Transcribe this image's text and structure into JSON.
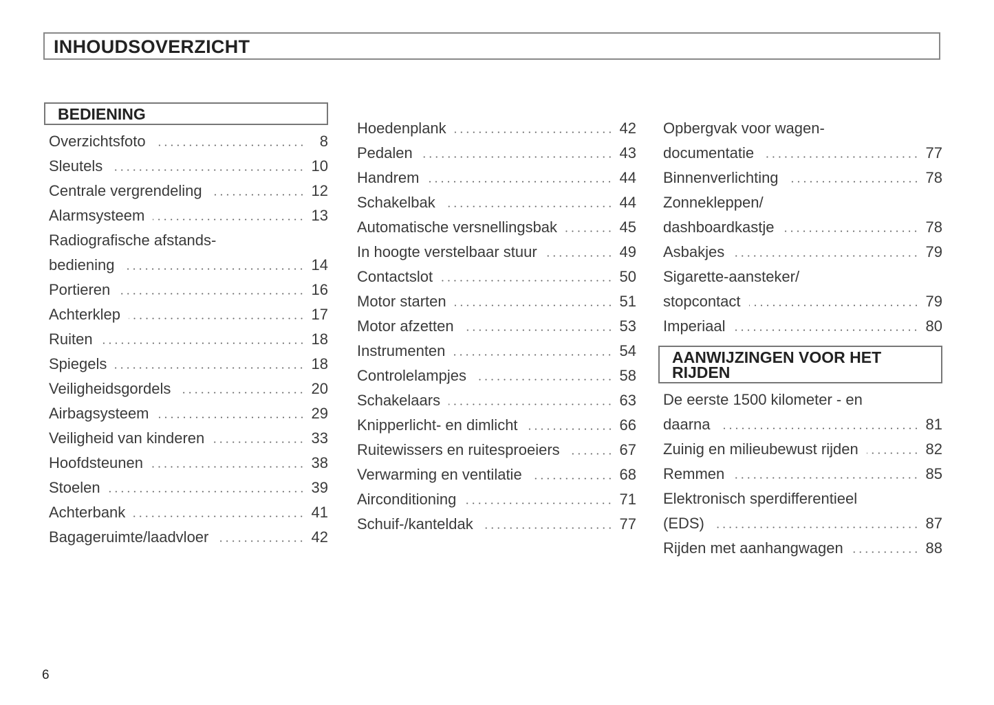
{
  "title": "INHOUDSOVERZICHT",
  "page_number": "6",
  "columns": [
    [
      {
        "type": "section",
        "lines": [
          "BEDIENING"
        ]
      },
      {
        "lines": [],
        "last": "Overzichtsfoto",
        "page": "8"
      },
      {
        "lines": [],
        "last": "Sleutels",
        "page": "10"
      },
      {
        "lines": [],
        "last": "Centrale vergrendeling",
        "page": "12"
      },
      {
        "lines": [],
        "last": "Alarmsysteem",
        "page": "13"
      },
      {
        "lines": [
          "Radiografische afstands-"
        ],
        "last": "bediening",
        "page": "14"
      },
      {
        "lines": [],
        "last": "Portieren",
        "page": "16"
      },
      {
        "lines": [],
        "last": "Achterklep",
        "page": "17"
      },
      {
        "lines": [],
        "last": "Ruiten",
        "page": "18"
      },
      {
        "lines": [],
        "last": "Spiegels",
        "page": "18"
      },
      {
        "lines": [],
        "last": "Veiligheidsgordels",
        "page": "20"
      },
      {
        "lines": [],
        "last": "Airbagsysteem",
        "page": "29"
      },
      {
        "lines": [],
        "last": "Veiligheid van kinderen",
        "page": "33"
      },
      {
        "lines": [],
        "last": "Hoofdsteunen",
        "page": "38"
      },
      {
        "lines": [],
        "last": "Stoelen",
        "page": "39"
      },
      {
        "lines": [],
        "last": "Achterbank",
        "page": "41"
      },
      {
        "lines": [],
        "last": "Bagageruimte/laadvloer",
        "page": "42"
      }
    ],
    [
      {
        "lines": [],
        "last": "Hoedenplank",
        "page": "42"
      },
      {
        "lines": [],
        "last": "Pedalen",
        "page": "43"
      },
      {
        "lines": [],
        "last": "Handrem",
        "page": "44"
      },
      {
        "lines": [],
        "last": "Schakelbak",
        "page": "44"
      },
      {
        "lines": [],
        "last": "Automatische versnellingsbak",
        "page": "45"
      },
      {
        "lines": [],
        "last": "In hoogte verstelbaar stuur",
        "page": "49"
      },
      {
        "lines": [],
        "last": "Contactslot",
        "page": "50"
      },
      {
        "lines": [],
        "last": "Motor starten",
        "page": "51"
      },
      {
        "lines": [],
        "last": "Motor afzetten",
        "page": "53"
      },
      {
        "lines": [],
        "last": "Instrumenten",
        "page": "54"
      },
      {
        "lines": [],
        "last": "Controlelampjes",
        "page": "58"
      },
      {
        "lines": [],
        "last": "Schakelaars",
        "page": "63"
      },
      {
        "lines": [],
        "last": "Knipperlicht- en dimlicht",
        "page": "66"
      },
      {
        "lines": [],
        "last": "Ruitewissers en ruitesproeiers",
        "page": "67"
      },
      {
        "lines": [],
        "last": "Verwarming en ventilatie",
        "page": "68"
      },
      {
        "lines": [],
        "last": "Airconditioning",
        "page": "71"
      },
      {
        "lines": [],
        "last": "Schuif-/kanteldak",
        "page": "77"
      }
    ],
    [
      {
        "lines": [
          "Opbergvak voor wagen-"
        ],
        "last": "documentatie",
        "page": "77"
      },
      {
        "lines": [],
        "last": "Binnenverlichting",
        "page": "78"
      },
      {
        "lines": [
          "Zonnekleppen/"
        ],
        "last": "dashboardkastje",
        "page": "78"
      },
      {
        "lines": [],
        "last": "Asbakjes",
        "page": "79"
      },
      {
        "lines": [
          "Sigarette-aansteker/"
        ],
        "last": "stopcontact",
        "page": "79"
      },
      {
        "lines": [],
        "last": "Imperiaal",
        "page": "80"
      },
      {
        "type": "section",
        "lines": [
          "AANWIJZINGEN VOOR HET",
          "RIJDEN"
        ]
      },
      {
        "lines": [
          "De eerste 1500 kilometer - en"
        ],
        "last": "daarna",
        "page": "81"
      },
      {
        "lines": [],
        "last": "Zuinig en milieubewust rijden",
        "page": "82"
      },
      {
        "lines": [],
        "last": "Remmen",
        "page": "85"
      },
      {
        "lines": [
          "Elektronisch sperdifferentieel"
        ],
        "last": "(EDS)",
        "page": "87"
      },
      {
        "lines": [],
        "last": "Rijden met aanhangwagen",
        "page": "88"
      }
    ]
  ]
}
